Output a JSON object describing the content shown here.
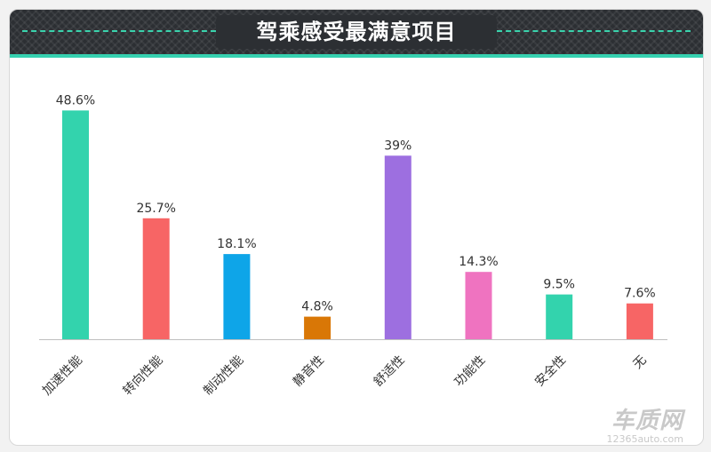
{
  "chart_data": {
    "type": "bar",
    "title": "驾乘感受最满意项目",
    "categories": [
      "加速性能",
      "转向性能",
      "制动性能",
      "静音性",
      "舒适性",
      "功能性",
      "安全性",
      "无"
    ],
    "values": [
      48.6,
      25.7,
      18.1,
      4.8,
      39,
      14.3,
      9.5,
      7.6
    ],
    "value_labels": [
      "48.6%",
      "25.7%",
      "18.1%",
      "4.8%",
      "39%",
      "14.3%",
      "9.5%",
      "7.6%"
    ],
    "colors": [
      "#33d3ad",
      "#f76565",
      "#0ea5e8",
      "#d97706",
      "#9d6fe0",
      "#ef73c0",
      "#33d3ad",
      "#f76565"
    ],
    "unit": "%",
    "ylim": [
      0,
      50
    ],
    "grid": false,
    "legend": "none"
  },
  "watermark": {
    "brand": "车质网",
    "url": "12365auto.com"
  }
}
